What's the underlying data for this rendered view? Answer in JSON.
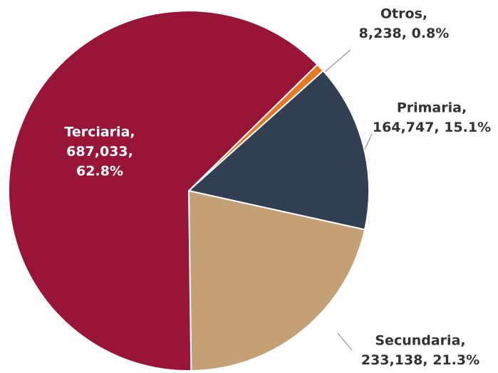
{
  "chart_data": {
    "type": "pie",
    "values": [
      8238,
      164747,
      233138,
      687033
    ],
    "value_labels": [
      [
        "Otros,",
        "8,238, 0.8%"
      ],
      [
        "Primaria,",
        "164,747, 15.1%"
      ],
      [
        "Secundaria,",
        "233,138, 21.3%"
      ],
      [
        "Terciaria,",
        "687,033,",
        "62.8%"
      ]
    ],
    "colors": [
      "#e87722",
      "#323e52",
      "#c4a077",
      "#981538"
    ]
  }
}
